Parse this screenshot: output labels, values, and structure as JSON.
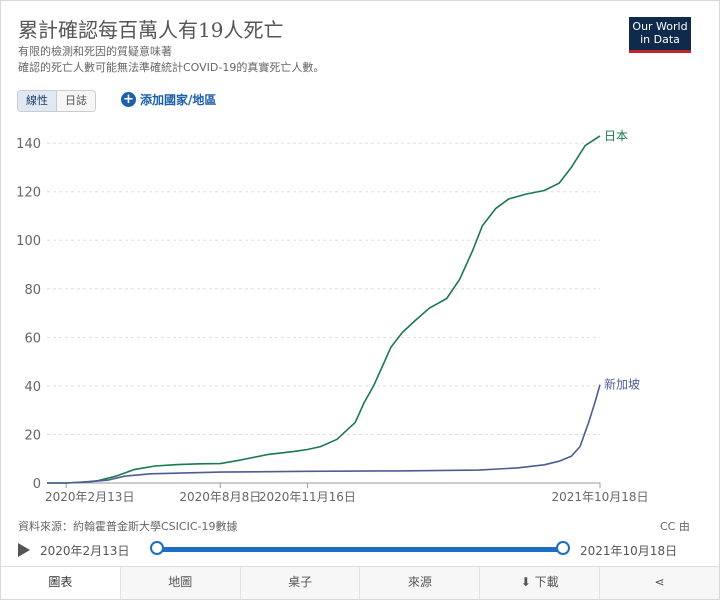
{
  "header": {
    "title": "累計確認每百萬人有19人死亡",
    "subtitle_line1": "有限的檢測和死因的質疑意味著",
    "subtitle_line2": "確認的死亡人數可能無法準確統計COVID-19的真實死亡人數。",
    "logo_line1": "Our World",
    "logo_line2": "in Data"
  },
  "controls": {
    "linear_label": "線性",
    "log_label": "日誌",
    "add_country_label": "添加國家/地區"
  },
  "chart_data": {
    "type": "line",
    "ylim": [
      0,
      145
    ],
    "yticks": [
      0,
      20,
      40,
      60,
      80,
      100,
      120,
      140
    ],
    "x_range": [
      "2020-01-22",
      "2021-10-18"
    ],
    "xtick_labels": [
      "2020年2月13日",
      "2020年8月8日",
      "2020年11月16日",
      "2021年10月18日"
    ],
    "xtick_dates": [
      "2020-02-13",
      "2020-08-08",
      "2020-11-16",
      "2021-10-18"
    ],
    "series": [
      {
        "name": "日本",
        "color": "#1a7a4c",
        "points": [
          [
            "2020-01-22",
            0
          ],
          [
            "2020-02-13",
            0
          ],
          [
            "2020-03-01",
            0.3
          ],
          [
            "2020-03-20",
            0.9
          ],
          [
            "2020-04-10",
            2.8
          ],
          [
            "2020-05-01",
            5.5
          ],
          [
            "2020-05-25",
            7
          ],
          [
            "2020-06-20",
            7.6
          ],
          [
            "2020-07-15",
            7.9
          ],
          [
            "2020-08-08",
            8
          ],
          [
            "2020-09-01",
            9.5
          ],
          [
            "2020-10-01",
            11.7
          ],
          [
            "2020-11-01",
            13
          ],
          [
            "2020-11-16",
            13.8
          ],
          [
            "2020-12-01",
            15
          ],
          [
            "2020-12-20",
            18
          ],
          [
            "2021-01-10",
            25
          ],
          [
            "2021-01-20",
            33
          ],
          [
            "2021-01-31",
            40
          ],
          [
            "2021-02-10",
            48
          ],
          [
            "2021-02-20",
            56
          ],
          [
            "2021-03-05",
            62
          ],
          [
            "2021-03-20",
            67
          ],
          [
            "2021-04-05",
            72
          ],
          [
            "2021-04-25",
            76
          ],
          [
            "2021-05-10",
            84
          ],
          [
            "2021-05-25",
            96
          ],
          [
            "2021-06-05",
            106
          ],
          [
            "2021-06-20",
            113
          ],
          [
            "2021-07-05",
            117
          ],
          [
            "2021-07-25",
            119
          ],
          [
            "2021-08-15",
            120.5
          ],
          [
            "2021-09-01",
            123.5
          ],
          [
            "2021-09-15",
            130
          ],
          [
            "2021-10-01",
            139
          ],
          [
            "2021-10-18",
            143
          ]
        ]
      },
      {
        "name": "新加坡",
        "color": "#4d5d94",
        "points": [
          [
            "2020-01-22",
            0
          ],
          [
            "2020-02-13",
            0
          ],
          [
            "2020-03-10",
            0.5
          ],
          [
            "2020-04-01",
            1.2
          ],
          [
            "2020-04-20",
            2.8
          ],
          [
            "2020-05-20",
            3.8
          ],
          [
            "2020-08-08",
            4.5
          ],
          [
            "2020-11-16",
            4.8
          ],
          [
            "2021-03-01",
            5
          ],
          [
            "2021-06-01",
            5.3
          ],
          [
            "2021-07-15",
            6.2
          ],
          [
            "2021-08-15",
            7.5
          ],
          [
            "2021-09-01",
            9
          ],
          [
            "2021-09-15",
            11
          ],
          [
            "2021-09-25",
            15
          ],
          [
            "2021-10-05",
            25
          ],
          [
            "2021-10-12",
            33
          ],
          [
            "2021-10-18",
            40.5
          ]
        ]
      }
    ]
  },
  "footer": {
    "source": "資料來源：約翰霍普金斯大學CSICIC-19數據",
    "license": "CC 由"
  },
  "timeline": {
    "start_label": "2020年2月13日",
    "end_label": "2021年10月18日"
  },
  "tabs": [
    {
      "label": "圖表"
    },
    {
      "label": "地圖"
    },
    {
      "label": "桌子"
    },
    {
      "label": "來源"
    },
    {
      "label": "下載"
    }
  ]
}
